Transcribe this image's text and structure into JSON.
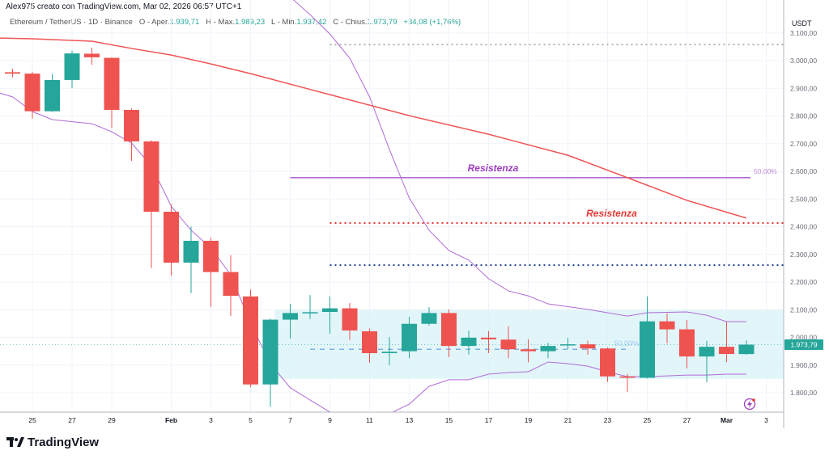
{
  "header": {
    "credit": "Alex975 creato con TradingView.com, Mar 02, 2026 06:57 UTC+1",
    "symbol": "Ethereum / TetherUS · 1D · Binance",
    "open_label": "O - Aper.",
    "open": "1.939,71",
    "high_label": "H - Max.",
    "high": "1.989,23",
    "low_label": "L - Min.",
    "low": "1.937,42",
    "close_label": "C - Chius.",
    "close": "1.973,79",
    "change": "+34,08 (+1,76%)"
  },
  "brand": "TradingView",
  "colors": {
    "up": "#26a69a",
    "down": "#ef5350",
    "ma": "#f05454",
    "bands": "#b26ad6",
    "box": "#d8f3f8",
    "resist_purple": "#9c3dbf",
    "resist_red": "#e53935",
    "support_blue": "#1f3f8f"
  },
  "chart_data": {
    "type": "candlestick",
    "currency": "USDT",
    "ylim": [
      1720,
      3130
    ],
    "grid": true,
    "y_ticks": [
      {
        "value": 3100,
        "label": "3.100,00"
      },
      {
        "value": 3000,
        "label": "3.000,00"
      },
      {
        "value": 2900,
        "label": "2.900,00"
      },
      {
        "value": 2800,
        "label": "2.800,00"
      },
      {
        "value": 2700,
        "label": "2.700,00"
      },
      {
        "value": 2600,
        "label": "2.600,00"
      },
      {
        "value": 2500,
        "label": "2.500,00"
      },
      {
        "value": 2400,
        "label": "2.400,00"
      },
      {
        "value": 2300,
        "label": "2.300,00"
      },
      {
        "value": 2200,
        "label": "2.200,00"
      },
      {
        "value": 2100,
        "label": "2.100,00"
      },
      {
        "value": 2000,
        "label": "2.000,00"
      },
      {
        "value": 1900,
        "label": "1.900,00"
      },
      {
        "value": 1800,
        "label": "1.800,00"
      }
    ],
    "x_ticks": [
      {
        "date": "Jan 25",
        "label": "25"
      },
      {
        "date": "Jan 27",
        "label": "27"
      },
      {
        "date": "Jan 29",
        "label": "29"
      },
      {
        "date": "Feb 1",
        "label": "Feb"
      },
      {
        "date": "Feb 3",
        "label": "3"
      },
      {
        "date": "Feb 5",
        "label": "5"
      },
      {
        "date": "Feb 7",
        "label": "7"
      },
      {
        "date": "Feb 9",
        "label": "9"
      },
      {
        "date": "Feb 11",
        "label": "11"
      },
      {
        "date": "Feb 13",
        "label": "13"
      },
      {
        "date": "Feb 15",
        "label": "15"
      },
      {
        "date": "Feb 17",
        "label": "17"
      },
      {
        "date": "Feb 19",
        "label": "19"
      },
      {
        "date": "Feb 21",
        "label": "21"
      },
      {
        "date": "Feb 23",
        "label": "23"
      },
      {
        "date": "Feb 25",
        "label": "25"
      },
      {
        "date": "Feb 27",
        "label": "27"
      },
      {
        "date": "Mar 1",
        "label": "Mar"
      },
      {
        "date": "Mar 3",
        "label": "3"
      }
    ],
    "candles": [
      {
        "date": "Jan 24",
        "o": 2958,
        "h": 2970,
        "l": 2940,
        "c": 2953
      },
      {
        "date": "Jan 25",
        "o": 2953,
        "h": 2960,
        "l": 2790,
        "c": 2817
      },
      {
        "date": "Jan 26",
        "o": 2817,
        "h": 2951,
        "l": 2815,
        "c": 2930
      },
      {
        "date": "Jan 27",
        "o": 2930,
        "h": 3036,
        "l": 2900,
        "c": 3026
      },
      {
        "date": "Jan 28",
        "o": 3025,
        "h": 3047,
        "l": 2985,
        "c": 3012
      },
      {
        "date": "Jan 29",
        "o": 3010,
        "h": 3012,
        "l": 2757,
        "c": 2822
      },
      {
        "date": "Jan 30",
        "o": 2822,
        "h": 2827,
        "l": 2638,
        "c": 2708
      },
      {
        "date": "Jan 31",
        "o": 2708,
        "h": 2712,
        "l": 2250,
        "c": 2454
      },
      {
        "date": "Feb 1",
        "o": 2454,
        "h": 2480,
        "l": 2223,
        "c": 2270
      },
      {
        "date": "Feb 2",
        "o": 2270,
        "h": 2400,
        "l": 2160,
        "c": 2349
      },
      {
        "date": "Feb 3",
        "o": 2349,
        "h": 2360,
        "l": 2110,
        "c": 2236
      },
      {
        "date": "Feb 4",
        "o": 2236,
        "h": 2297,
        "l": 2078,
        "c": 2150
      },
      {
        "date": "Feb 5",
        "o": 2148,
        "h": 2173,
        "l": 1820,
        "c": 1830
      },
      {
        "date": "Feb 6",
        "o": 1830,
        "h": 2068,
        "l": 1750,
        "c": 2064
      },
      {
        "date": "Feb 7",
        "o": 2064,
        "h": 2121,
        "l": 1996,
        "c": 2088
      },
      {
        "date": "Feb 8",
        "o": 2089,
        "h": 2153,
        "l": 2066,
        "c": 2091
      },
      {
        "date": "Feb 9",
        "o": 2092,
        "h": 2148,
        "l": 2013,
        "c": 2105
      },
      {
        "date": "Feb 10",
        "o": 2105,
        "h": 2124,
        "l": 1991,
        "c": 2025
      },
      {
        "date": "Feb 11",
        "o": 2022,
        "h": 2032,
        "l": 1908,
        "c": 1943
      },
      {
        "date": "Feb 12",
        "o": 1943,
        "h": 2001,
        "l": 1900,
        "c": 1948
      },
      {
        "date": "Feb 13",
        "o": 1950,
        "h": 2074,
        "l": 1925,
        "c": 2049
      },
      {
        "date": "Feb 14",
        "o": 2049,
        "h": 2109,
        "l": 2043,
        "c": 2088
      },
      {
        "date": "Feb 15",
        "o": 2088,
        "h": 2101,
        "l": 1929,
        "c": 1969
      },
      {
        "date": "Feb 16",
        "o": 1969,
        "h": 2025,
        "l": 1938,
        "c": 1999
      },
      {
        "date": "Feb 17",
        "o": 1999,
        "h": 2023,
        "l": 1943,
        "c": 1993
      },
      {
        "date": "Feb 18",
        "o": 1992,
        "h": 2040,
        "l": 1925,
        "c": 1957
      },
      {
        "date": "Feb 19",
        "o": 1957,
        "h": 1993,
        "l": 1910,
        "c": 1950
      },
      {
        "date": "Feb 20",
        "o": 1950,
        "h": 1981,
        "l": 1925,
        "c": 1969
      },
      {
        "date": "Feb 21",
        "o": 1972,
        "h": 1998,
        "l": 1958,
        "c": 1975
      },
      {
        "date": "Feb 22",
        "o": 1975,
        "h": 1988,
        "l": 1937,
        "c": 1960
      },
      {
        "date": "Feb 23",
        "o": 1960,
        "h": 1964,
        "l": 1839,
        "c": 1859
      },
      {
        "date": "Feb 24",
        "o": 1859,
        "h": 1868,
        "l": 1803,
        "c": 1854
      },
      {
        "date": "Feb 25",
        "o": 1854,
        "h": 2148,
        "l": 1852,
        "c": 2058
      },
      {
        "date": "Feb 26",
        "o": 2058,
        "h": 2086,
        "l": 1978,
        "c": 2029
      },
      {
        "date": "Feb 27",
        "o": 2029,
        "h": 2063,
        "l": 1888,
        "c": 1931
      },
      {
        "date": "Feb 28",
        "o": 1931,
        "h": 1988,
        "l": 1838,
        "c": 1966
      },
      {
        "date": "Mar 1",
        "o": 1966,
        "h": 2056,
        "l": 1910,
        "c": 1940
      },
      {
        "date": "Mar 2",
        "o": 1939.71,
        "h": 1989.23,
        "l": 1937.42,
        "c": 1973.79
      }
    ],
    "moving_average": [
      [
        "Jan 23",
        3082
      ],
      [
        "Jan 25",
        3079
      ],
      [
        "Jan 28",
        3070
      ],
      [
        "Jan 30",
        3044
      ],
      [
        "Feb 1",
        3020
      ],
      [
        "Feb 3",
        2988
      ],
      [
        "Feb 5",
        2953
      ],
      [
        "Feb 9",
        2877
      ],
      [
        "Feb 13",
        2801
      ],
      [
        "Feb 17",
        2734
      ],
      [
        "Feb 21",
        2658
      ],
      [
        "Feb 24",
        2577
      ],
      [
        "Feb 27",
        2495
      ],
      [
        "Mar 2",
        2431
      ]
    ],
    "upper_band": [
      [
        "Feb 7",
        3230
      ],
      [
        "Feb 8",
        3166
      ],
      [
        "Feb 9",
        3096
      ],
      [
        "Feb 10",
        3009
      ],
      [
        "Feb 11",
        2869
      ],
      [
        "Feb 12",
        2679
      ],
      [
        "Feb 13",
        2504
      ],
      [
        "Feb 14",
        2387
      ],
      [
        "Feb 15",
        2314
      ],
      [
        "Feb 16",
        2279
      ],
      [
        "Feb 17",
        2212
      ],
      [
        "Feb 18",
        2168
      ],
      [
        "Feb 19",
        2150
      ],
      [
        "Feb 20",
        2121
      ],
      [
        "Feb 22",
        2101
      ],
      [
        "Feb 24",
        2077
      ],
      [
        "Feb 25",
        2089
      ],
      [
        "Feb 27",
        2092
      ],
      [
        "Feb 28",
        2080
      ],
      [
        "Mar 1",
        2057
      ],
      [
        "Mar 2",
        2057
      ]
    ],
    "lower_band": [
      [
        "Jan 23",
        2890
      ],
      [
        "Jan 24",
        2869
      ],
      [
        "Jan 25",
        2816
      ],
      [
        "Jan 26",
        2787
      ],
      [
        "Jan 28",
        2772
      ],
      [
        "Jan 29",
        2743
      ],
      [
        "Jan 30",
        2702
      ],
      [
        "Jan 31",
        2620
      ],
      [
        "Feb 1",
        2474
      ],
      [
        "Feb 2",
        2387
      ],
      [
        "Feb 3",
        2323
      ],
      [
        "Feb 4",
        2226
      ],
      [
        "Feb 5",
        2051
      ],
      [
        "Feb 6",
        1905
      ],
      [
        "Feb 7",
        1818
      ],
      [
        "Feb 8",
        1774
      ],
      [
        "Feb 9",
        1730
      ],
      [
        "Feb 10",
        1700
      ],
      [
        "Feb 11",
        1680
      ],
      [
        "Feb 12",
        1724
      ],
      [
        "Feb 13",
        1759
      ],
      [
        "Feb 14",
        1823
      ],
      [
        "Feb 15",
        1847
      ],
      [
        "Feb 16",
        1847
      ],
      [
        "Feb 17",
        1867
      ],
      [
        "Feb 18",
        1873
      ],
      [
        "Feb 19",
        1876
      ],
      [
        "Feb 20",
        1911
      ],
      [
        "Feb 21",
        1905
      ],
      [
        "Feb 22",
        1896
      ],
      [
        "Feb 23",
        1876
      ],
      [
        "Feb 24",
        1858
      ],
      [
        "Feb 25",
        1858
      ],
      [
        "Feb 26",
        1861
      ],
      [
        "Feb 27",
        1864
      ],
      [
        "Feb 28",
        1864
      ],
      [
        "Mar 1",
        1867
      ],
      [
        "Mar 2",
        1867
      ]
    ],
    "range_box": {
      "from": "Feb 6",
      "top": 2100,
      "bottom": 1850,
      "mid": 1957,
      "mid_label": "50,00%"
    },
    "annotations": [
      {
        "kind": "solid",
        "color": "#9c3dbf",
        "price": 2577,
        "from": "Feb 7",
        "to": "Mar 2",
        "label": "Resistenza",
        "right_label": "50,00%"
      },
      {
        "kind": "dotted",
        "color": "#e53935",
        "price": 2413,
        "from": "Feb 9",
        "to": "end",
        "label": "Resistenza"
      },
      {
        "kind": "dotted",
        "color": "#1f3f8f",
        "price": 2261,
        "from": "Feb 9",
        "to": "end"
      },
      {
        "kind": "dotted",
        "color": "#b0b0b0",
        "price": 3058,
        "from": "Feb 9",
        "to": "end"
      }
    ],
    "last_price": {
      "value": 1973.79,
      "label": "1.973,79"
    }
  }
}
